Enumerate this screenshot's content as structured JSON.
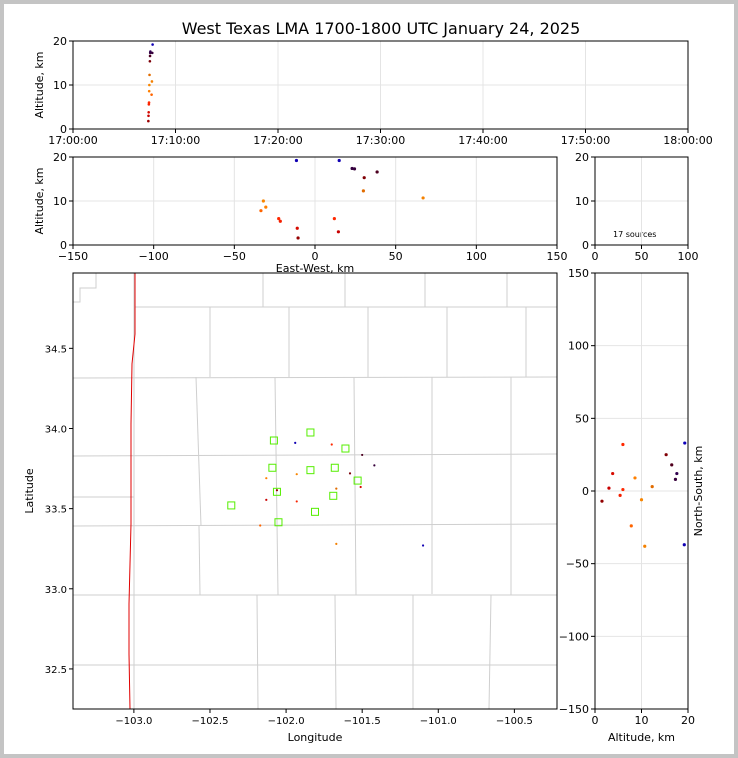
{
  "title": "West Texas LMA 1700-1800 UTC January 24, 2025",
  "sources_label": "17 sources",
  "chart_data": [
    {
      "id": "time-height",
      "type": "scatter",
      "ylabel": "Altitude, km",
      "xlabel": "",
      "xlim": [
        "17:00:00",
        "18:00:00"
      ],
      "ylim": [
        0,
        20
      ],
      "xticks": [
        "17:00:00",
        "17:10:00",
        "17:20:00",
        "17:30:00",
        "17:40:00",
        "17:50:00",
        "18:00:00"
      ],
      "yticks": [
        "0",
        "10",
        "20"
      ],
      "grid": true,
      "points": [
        {
          "t": "17:07:21",
          "alt": 1.8
        },
        {
          "t": "17:07:22",
          "alt": 3.0
        },
        {
          "t": "17:07:23",
          "alt": 3.8
        },
        {
          "t": "17:07:24",
          "alt": 5.6
        },
        {
          "t": "17:07:25",
          "alt": 6.0
        },
        {
          "t": "17:07:26",
          "alt": 8.6
        },
        {
          "t": "17:07:27",
          "alt": 10.0
        },
        {
          "t": "17:07:28",
          "alt": 12.3
        },
        {
          "t": "17:07:30",
          "alt": 15.4
        },
        {
          "t": "17:07:31",
          "alt": 16.6
        },
        {
          "t": "17:07:32",
          "alt": 17.3
        },
        {
          "t": "17:07:33",
          "alt": 17.6
        },
        {
          "t": "17:07:40",
          "alt": 7.8
        },
        {
          "t": "17:07:42",
          "alt": 10.8
        },
        {
          "t": "17:07:44",
          "alt": 17.3
        },
        {
          "t": "17:07:46",
          "alt": 19.2
        }
      ]
    },
    {
      "id": "ew-height",
      "type": "scatter",
      "xlabel": "East-West, km",
      "ylabel": "Altitude, km",
      "xlim": [
        -150,
        150
      ],
      "ylim": [
        0,
        20
      ],
      "xticks": [
        "−150",
        "−100",
        "−50",
        "0",
        "50",
        "100",
        "150"
      ],
      "yticks": [
        "0",
        "10",
        "20"
      ],
      "grid": true,
      "points": [
        {
          "x": -10.5,
          "y": 1.6
        },
        {
          "x": -11,
          "y": 3.8
        },
        {
          "x": -21.5,
          "y": 5.4
        },
        {
          "x": -22.5,
          "y": 6.0
        },
        {
          "x": -30.5,
          "y": 8.6
        },
        {
          "x": -32,
          "y": 10.0
        },
        {
          "x": -33.5,
          "y": 7.8
        },
        {
          "x": 14.5,
          "y": 3.0
        },
        {
          "x": 12,
          "y": 6.0
        },
        {
          "x": 30,
          "y": 12.3
        },
        {
          "x": 30.5,
          "y": 15.3
        },
        {
          "x": 38.5,
          "y": 16.6
        },
        {
          "x": 23,
          "y": 17.4
        },
        {
          "x": 24.5,
          "y": 17.3
        },
        {
          "x": 15,
          "y": 19.2
        },
        {
          "x": -11.5,
          "y": 19.2
        },
        {
          "x": 67,
          "y": 10.7
        }
      ]
    },
    {
      "id": "histogram",
      "type": "bar",
      "xlim": [
        0,
        100
      ],
      "ylim": [
        0,
        20
      ],
      "xticks": [
        "0",
        "50",
        "100"
      ],
      "yticks": [
        "0",
        "10",
        "20"
      ],
      "grid": true,
      "values": []
    },
    {
      "id": "plan-view",
      "type": "scatter",
      "xlabel": "Longitude",
      "ylabel": "Latitude",
      "xlim": [
        -103.4,
        -100.22
      ],
      "ylim": [
        32.25,
        34.97
      ],
      "xticks": [
        "−103.0",
        "−102.5",
        "−102.0",
        "−101.5",
        "−101.0",
        "−100.5"
      ],
      "yticks": [
        "32.5",
        "33.0",
        "33.5",
        "34.0",
        "34.5"
      ],
      "stations": [
        {
          "lon": -102.08,
          "lat": 33.925
        },
        {
          "lon": -101.84,
          "lat": 33.975
        },
        {
          "lon": -101.61,
          "lat": 33.875
        },
        {
          "lon": -102.09,
          "lat": 33.755
        },
        {
          "lon": -101.84,
          "lat": 33.74
        },
        {
          "lon": -101.68,
          "lat": 33.755
        },
        {
          "lon": -101.53,
          "lat": 33.675
        },
        {
          "lon": -102.06,
          "lat": 33.605
        },
        {
          "lon": -101.69,
          "lat": 33.58
        },
        {
          "lon": -102.36,
          "lat": 33.52
        },
        {
          "lon": -101.81,
          "lat": 33.48
        },
        {
          "lon": -102.05,
          "lat": 33.415
        }
      ],
      "points": [
        {
          "lon": -101.94,
          "lat": 33.91,
          "alt": 19.2
        },
        {
          "lon": -101.7,
          "lat": 33.9,
          "alt": 6.0
        },
        {
          "lon": -101.5,
          "lat": 33.835,
          "alt": 16.6
        },
        {
          "lon": -101.42,
          "lat": 33.77,
          "alt": 17.3
        },
        {
          "lon": -101.58,
          "lat": 33.72,
          "alt": 15.4
        },
        {
          "lon": -101.93,
          "lat": 33.715,
          "alt": 10.0
        },
        {
          "lon": -102.13,
          "lat": 33.69,
          "alt": 8.6
        },
        {
          "lon": -101.67,
          "lat": 33.625,
          "alt": 12.3
        },
        {
          "lon": -101.51,
          "lat": 33.635,
          "alt": 3.8
        },
        {
          "lon": -102.06,
          "lat": 33.615,
          "alt": 1.6
        },
        {
          "lon": -102.13,
          "lat": 33.555,
          "alt": 3.0
        },
        {
          "lon": -101.93,
          "lat": 33.545,
          "alt": 5.6
        },
        {
          "lon": -102.17,
          "lat": 33.395,
          "alt": 7.8
        },
        {
          "lon": -101.67,
          "lat": 33.28,
          "alt": 10.8
        },
        {
          "lon": -101.1,
          "lat": 33.27,
          "alt": 19.2
        }
      ]
    },
    {
      "id": "height-ns",
      "type": "scatter",
      "xlabel": "Altitude, km",
      "ylabel": "North-South, km",
      "xlim": [
        0,
        20
      ],
      "ylim": [
        -150,
        150
      ],
      "xticks": [
        "0",
        "10",
        "20"
      ],
      "yticks": [
        "−150",
        "−100",
        "−50",
        "0",
        "50",
        "100",
        "150"
      ],
      "grid": true,
      "points": [
        {
          "alt": 1.5,
          "ns": -7
        },
        {
          "alt": 3.0,
          "ns": 2
        },
        {
          "alt": 3.8,
          "ns": 12
        },
        {
          "alt": 5.4,
          "ns": -3
        },
        {
          "alt": 6.0,
          "ns": 1
        },
        {
          "alt": 6.0,
          "ns": 32
        },
        {
          "alt": 7.8,
          "ns": -24
        },
        {
          "alt": 8.6,
          "ns": 9
        },
        {
          "alt": 10.0,
          "ns": -6
        },
        {
          "alt": 10.7,
          "ns": -38
        },
        {
          "alt": 12.3,
          "ns": 3
        },
        {
          "alt": 15.3,
          "ns": 25
        },
        {
          "alt": 16.5,
          "ns": 18
        },
        {
          "alt": 17.3,
          "ns": 8
        },
        {
          "alt": 17.6,
          "ns": 12
        },
        {
          "alt": 19.2,
          "ns": -37
        },
        {
          "alt": 19.3,
          "ns": 33
        }
      ]
    }
  ]
}
